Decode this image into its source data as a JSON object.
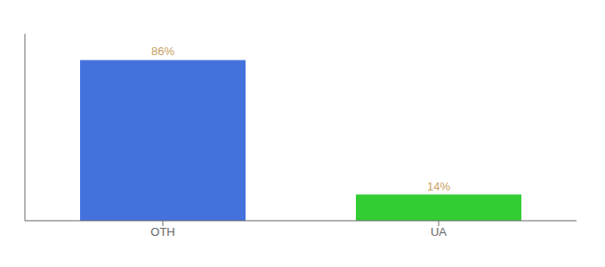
{
  "chart_data": {
    "type": "bar",
    "categories": [
      "OTH",
      "UA"
    ],
    "values": [
      86,
      14
    ],
    "value_labels": [
      "86%",
      "14%"
    ],
    "colors": [
      "#4472DD",
      "#33CC33"
    ],
    "ylim": [
      0,
      100
    ],
    "data_labels": true,
    "tick_labels": "x",
    "grid": false
  }
}
